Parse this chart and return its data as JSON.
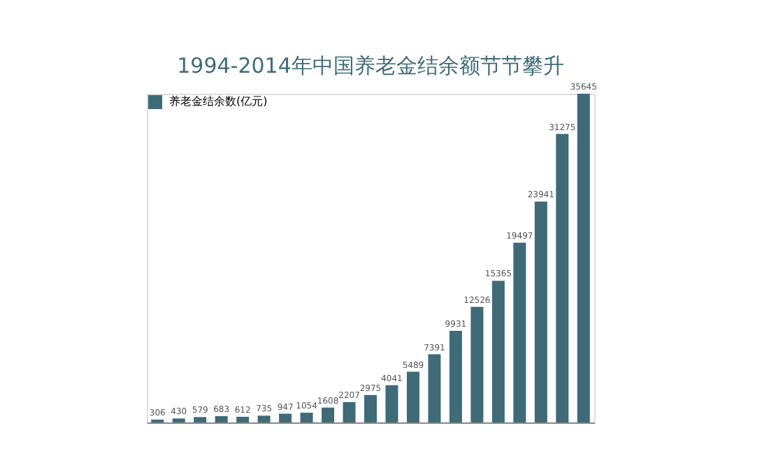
{
  "chart_data": {
    "type": "bar",
    "title": "1994-2014年中国养老金结余额节节攀升",
    "categories": [
      null,
      null,
      null,
      null,
      null,
      null,
      null,
      null,
      null,
      null,
      null,
      null,
      null,
      null,
      null,
      null,
      null,
      null,
      null,
      null,
      null
    ],
    "series": [
      {
        "name": "养老金结余数(亿元)",
        "color": "#3f6b78",
        "values": [
          306,
          430,
          579,
          683,
          612,
          735,
          947,
          1054,
          1608,
          2207,
          2975,
          4041,
          5489,
          7391,
          9931,
          12526,
          15365,
          19497,
          23941,
          31275,
          35645
        ]
      }
    ],
    "data_labels": true,
    "legend": "top left",
    "grid": false
  }
}
